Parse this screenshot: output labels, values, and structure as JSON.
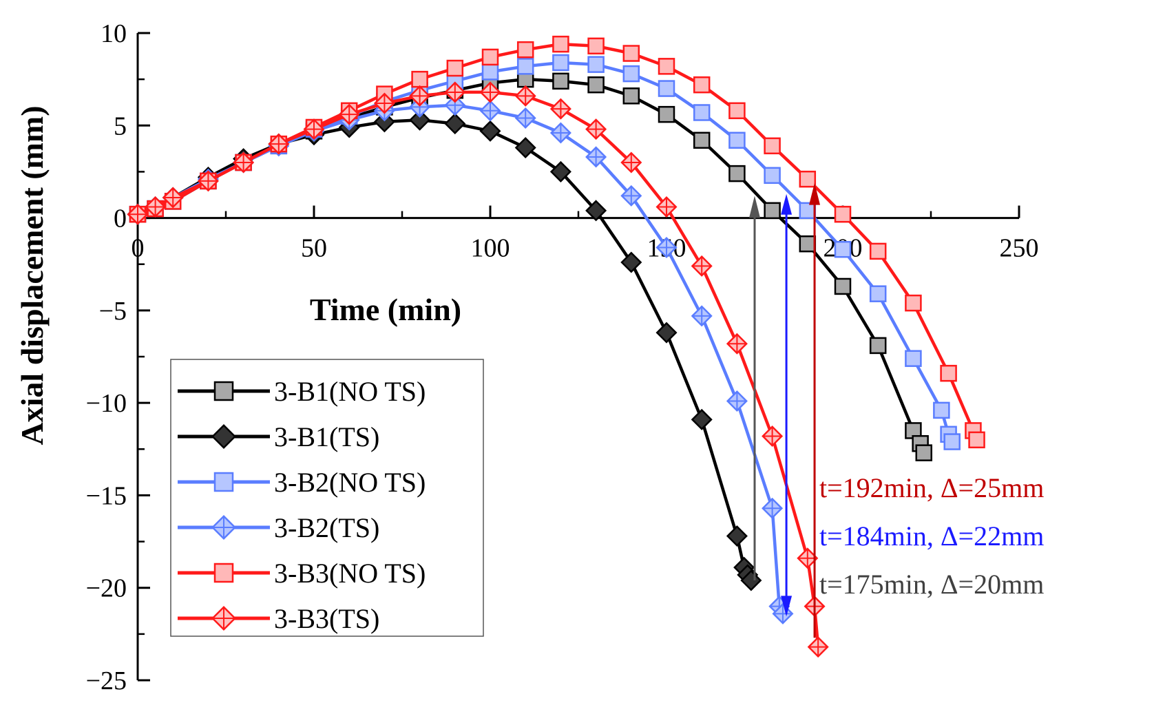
{
  "chart_data": {
    "type": "line",
    "title": "",
    "xlabel": "Time (min)",
    "ylabel": "Axial displacement (mm)",
    "xlim": [
      0,
      250
    ],
    "ylim": [
      -25,
      10
    ],
    "xticks": [
      "0",
      "50",
      "100",
      "150",
      "200",
      "250"
    ],
    "yticks": [
      "10",
      "5",
      "0",
      "−5",
      "−10",
      "−15",
      "−20",
      "−25"
    ],
    "xtick_values": [
      0,
      50,
      100,
      150,
      200,
      250
    ],
    "ytick_values": [
      10,
      5,
      0,
      -5,
      -10,
      -15,
      -20,
      -25
    ],
    "grid": false,
    "legend_position": "lower-left",
    "series": [
      {
        "name": "3-B1(NO TS)",
        "color": "#000000",
        "marker": "square",
        "marker_fill": "#a8a8a8",
        "x": [
          0,
          5,
          10,
          20,
          30,
          40,
          50,
          60,
          70,
          80,
          90,
          100,
          110,
          120,
          130,
          140,
          150,
          160,
          170,
          180,
          190,
          200,
          210,
          220,
          222,
          223
        ],
        "y": [
          0.2,
          0.5,
          0.9,
          2.0,
          3.0,
          3.9,
          4.7,
          5.4,
          6.0,
          6.5,
          6.9,
          7.3,
          7.5,
          7.4,
          7.2,
          6.6,
          5.6,
          4.2,
          2.4,
          0.4,
          -1.4,
          -3.7,
          -6.9,
          -11.5,
          -12.2,
          -12.7
        ]
      },
      {
        "name": "3-B1(TS)",
        "color": "#000000",
        "marker": "diamond",
        "marker_fill": "#333333",
        "x": [
          0,
          5,
          10,
          20,
          30,
          40,
          50,
          60,
          70,
          80,
          90,
          100,
          110,
          120,
          130,
          140,
          150,
          160,
          170,
          172,
          173,
          174
        ],
        "y": [
          0.2,
          0.6,
          1.1,
          2.2,
          3.2,
          4.0,
          4.5,
          4.9,
          5.2,
          5.3,
          5.1,
          4.7,
          3.8,
          2.5,
          0.4,
          -2.4,
          -6.2,
          -10.9,
          -17.2,
          -18.9,
          -19.3,
          -19.6
        ]
      },
      {
        "name": "3-B2(NO TS)",
        "color": "#5a7dff",
        "marker": "square",
        "marker_fill": "#b6c6ff",
        "x": [
          0,
          5,
          10,
          20,
          30,
          40,
          50,
          60,
          70,
          80,
          90,
          100,
          110,
          120,
          130,
          140,
          150,
          160,
          170,
          180,
          190,
          200,
          210,
          220,
          228,
          230,
          231
        ],
        "y": [
          0.2,
          0.5,
          0.9,
          2.0,
          3.0,
          3.9,
          4.8,
          5.5,
          6.3,
          6.9,
          7.4,
          7.9,
          8.2,
          8.4,
          8.3,
          7.8,
          7.0,
          5.7,
          4.2,
          2.3,
          0.4,
          -1.7,
          -4.1,
          -7.6,
          -10.4,
          -11.7,
          -12.1
        ]
      },
      {
        "name": "3-B2(TS)",
        "color": "#5a7dff",
        "marker": "crossdiamond",
        "marker_fill": "#b6c6ff",
        "x": [
          0,
          5,
          10,
          20,
          30,
          40,
          50,
          60,
          70,
          80,
          90,
          100,
          110,
          120,
          130,
          140,
          150,
          160,
          170,
          180,
          182,
          183
        ],
        "y": [
          0.2,
          0.6,
          1.1,
          2.1,
          3.0,
          3.9,
          4.7,
          5.3,
          5.8,
          6.0,
          6.1,
          5.8,
          5.4,
          4.6,
          3.3,
          1.2,
          -1.6,
          -5.3,
          -9.9,
          -15.7,
          -21.0,
          -21.4
        ]
      },
      {
        "name": "3-B3(NO TS)",
        "color": "#ff1a1a",
        "marker": "square",
        "marker_fill": "#ffb8b8",
        "x": [
          0,
          5,
          10,
          20,
          30,
          40,
          50,
          60,
          70,
          80,
          90,
          100,
          110,
          120,
          130,
          140,
          150,
          160,
          170,
          180,
          190,
          200,
          210,
          220,
          230,
          237,
          238
        ],
        "y": [
          0.2,
          0.5,
          0.9,
          2.0,
          3.0,
          4.0,
          4.9,
          5.8,
          6.7,
          7.5,
          8.1,
          8.7,
          9.1,
          9.4,
          9.3,
          8.9,
          8.2,
          7.2,
          5.8,
          3.9,
          2.1,
          0.2,
          -1.8,
          -4.6,
          -8.4,
          -11.5,
          -12.0
        ]
      },
      {
        "name": "3-B3(TS)",
        "color": "#ff1a1a",
        "marker": "crossdiamond",
        "marker_fill": "#ffc0c0",
        "x": [
          0,
          5,
          10,
          20,
          30,
          40,
          50,
          60,
          70,
          80,
          90,
          100,
          110,
          120,
          130,
          140,
          150,
          160,
          170,
          180,
          190,
          192,
          193
        ],
        "y": [
          0.2,
          0.6,
          1.1,
          2.0,
          3.0,
          4.0,
          4.8,
          5.6,
          6.2,
          6.6,
          6.8,
          6.8,
          6.6,
          5.9,
          4.8,
          3.0,
          0.6,
          -2.6,
          -6.8,
          -11.8,
          -18.4,
          -21.0,
          -23.2
        ]
      }
    ],
    "failure_markers": [
      {
        "label": "t=192min, Δ=25mm",
        "t": 192,
        "y_bottom": -22.7,
        "y_top": 1.6,
        "direction": "up",
        "color": "#c00000",
        "text_color": "#c00000"
      },
      {
        "label": "t=184min, Δ=22mm",
        "t": 184,
        "y_bottom": -21.4,
        "y_top": 1.0,
        "direction": "down",
        "color": "#1a1aff",
        "text_color": "#1a1aff"
      },
      {
        "label": "t=175min, Δ=20mm",
        "t": 175,
        "y_bottom": -19.6,
        "y_top": 0.9,
        "direction": "up",
        "color": "#555555",
        "text_color": "#404040"
      }
    ]
  }
}
